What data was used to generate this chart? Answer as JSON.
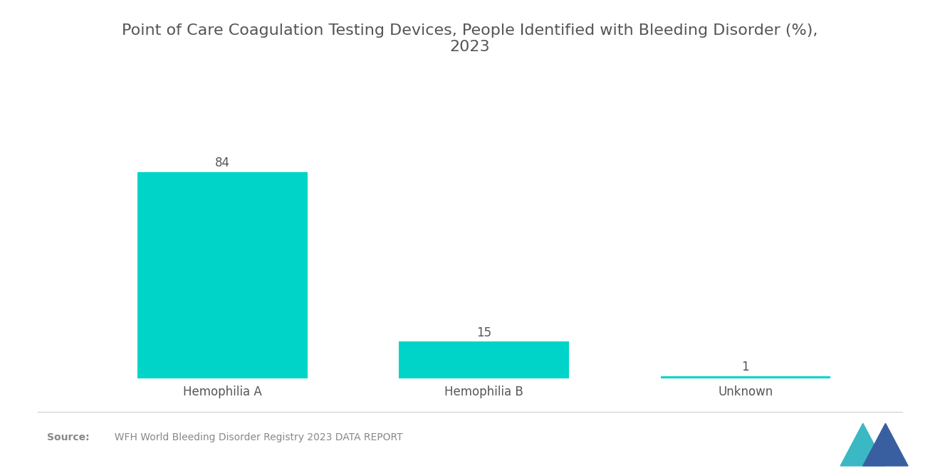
{
  "title": "Point of Care Coagulation Testing Devices, People Identified with Bleeding Disorder (%),\n2023",
  "categories": [
    "Hemophilia A",
    "Hemophilia B",
    "Unknown"
  ],
  "values": [
    84,
    15,
    1
  ],
  "bar_color": "#00D4C8",
  "background_color": "#ffffff",
  "title_fontsize": 16,
  "label_fontsize": 12,
  "value_fontsize": 12,
  "source_label": "Source:",
  "source_text": "  WFH World Bleeding Disorder Registry 2023 DATA REPORT",
  "ylim": [
    0,
    100
  ],
  "bar_width": 0.65
}
